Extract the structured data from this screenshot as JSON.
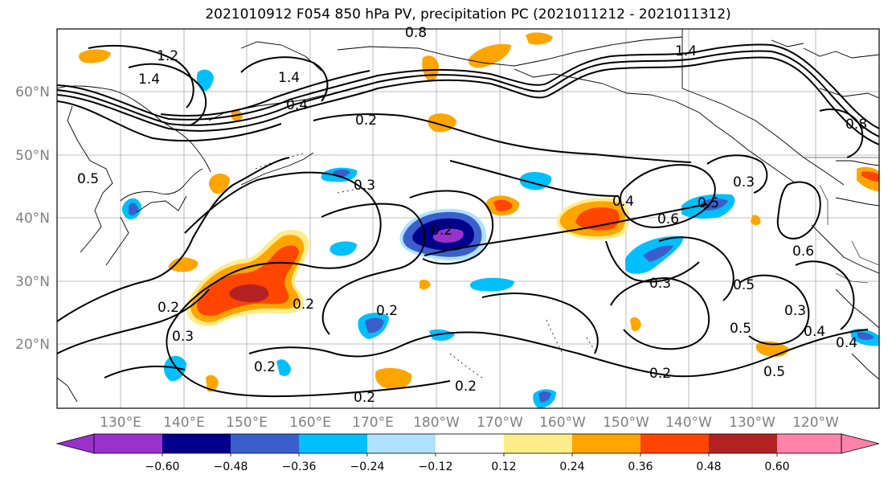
{
  "title": "2021010912 F054 850 hPa PV, precipitation PC (2021011212 - 2021011312)",
  "map": {
    "lat_labels": [
      "60°N",
      "50°N",
      "40°N",
      "30°N",
      "20°N"
    ],
    "lon_labels": [
      "130°E",
      "140°E",
      "150°E",
      "160°E",
      "170°E",
      "180°W",
      "170°W",
      "160°W",
      "150°W",
      "140°W",
      "130°W",
      "120°W"
    ]
  },
  "contour_labels": [
    "1.2",
    "1.4",
    "0.8",
    "1.4",
    "0.4",
    "0.2",
    "0.3",
    "0.2",
    "0.5",
    "1.4",
    "0.3",
    "0.4",
    "0.6",
    "0.6",
    "0.3",
    "0.5",
    "0.5",
    "0.3",
    "0.4",
    "0.4",
    "0.5",
    "0.2",
    "0.2",
    "0.2",
    "0.2",
    "0.2",
    "0.3",
    "0.2",
    "0.2",
    "0.5",
    "0.8"
  ],
  "colorbar": {
    "colors": [
      "#9932cc",
      "#00008b",
      "#3a5fcd",
      "#00bfff",
      "#b0e2ff",
      "#ffffff",
      "#ffec8b",
      "#ffa500",
      "#ff4500",
      "#b22222",
      "#ff82ab"
    ],
    "tick_labels": [
      "−0.60",
      "−0.48",
      "−0.36",
      "−0.24",
      "−0.12",
      "0.12",
      "0.24",
      "0.36",
      "0.48",
      "0.60"
    ]
  }
}
